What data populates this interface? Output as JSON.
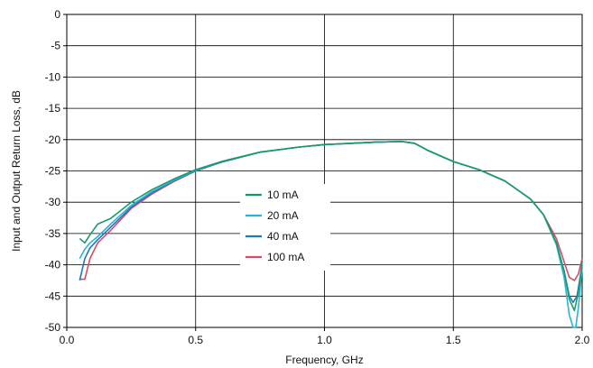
{
  "chart_data": {
    "type": "line",
    "xlabel": "Frequency, GHz",
    "ylabel": "Input and Output Return Loss, dB",
    "xlim": [
      0,
      2
    ],
    "ylim": [
      -50,
      0
    ],
    "x_ticks": [
      "0.0",
      "0.5",
      "1.0",
      "1.5",
      "2.0"
    ],
    "y_ticks": [
      "0",
      "-5",
      "-10",
      "-15",
      "-20",
      "-25",
      "-30",
      "-35",
      "-40",
      "-45",
      "-50"
    ],
    "grid": true,
    "legend_position": "center-left",
    "series": [
      {
        "name": "10 mA",
        "color": "#1a9a6a",
        "points": [
          [
            0.05,
            -35.8
          ],
          [
            0.07,
            -36.5
          ],
          [
            0.09,
            -35.2
          ],
          [
            0.12,
            -33.5
          ],
          [
            0.17,
            -32.6
          ],
          [
            0.25,
            -30.0
          ],
          [
            0.33,
            -28.0
          ],
          [
            0.42,
            -26.2
          ],
          [
            0.5,
            -24.8
          ],
          [
            0.6,
            -23.5
          ],
          [
            0.75,
            -22.0
          ],
          [
            0.9,
            -21.2
          ],
          [
            1.0,
            -20.8
          ],
          [
            1.1,
            -20.6
          ],
          [
            1.2,
            -20.4
          ],
          [
            1.3,
            -20.3
          ],
          [
            1.35,
            -20.6
          ],
          [
            1.4,
            -21.7
          ],
          [
            1.5,
            -23.5
          ],
          [
            1.6,
            -24.8
          ],
          [
            1.7,
            -26.6
          ],
          [
            1.8,
            -29.5
          ],
          [
            1.85,
            -32.0
          ],
          [
            1.9,
            -36.5
          ],
          [
            1.93,
            -41.0
          ],
          [
            1.95,
            -45.5
          ],
          [
            1.97,
            -47.3
          ],
          [
            1.985,
            -44.5
          ],
          [
            2.0,
            -39.5
          ]
        ]
      },
      {
        "name": "20 mA",
        "color": "#2ab3d6",
        "points": [
          [
            0.05,
            -39.0
          ],
          [
            0.07,
            -37.5
          ],
          [
            0.09,
            -36.5
          ],
          [
            0.12,
            -35.5
          ],
          [
            0.17,
            -33.5
          ],
          [
            0.25,
            -30.5
          ],
          [
            0.33,
            -28.3
          ],
          [
            0.42,
            -26.4
          ],
          [
            0.5,
            -24.9
          ],
          [
            0.6,
            -23.5
          ],
          [
            0.75,
            -22.0
          ],
          [
            0.9,
            -21.2
          ],
          [
            1.0,
            -20.8
          ],
          [
            1.1,
            -20.6
          ],
          [
            1.2,
            -20.4
          ],
          [
            1.3,
            -20.3
          ],
          [
            1.35,
            -20.6
          ],
          [
            1.4,
            -21.7
          ],
          [
            1.5,
            -23.5
          ],
          [
            1.6,
            -24.8
          ],
          [
            1.7,
            -26.6
          ],
          [
            1.8,
            -29.5
          ],
          [
            1.85,
            -32.0
          ],
          [
            1.9,
            -36.8
          ],
          [
            1.93,
            -42.0
          ],
          [
            1.95,
            -48.0
          ],
          [
            1.965,
            -50.0
          ],
          [
            1.975,
            -50.0
          ],
          [
            1.985,
            -47.0
          ],
          [
            2.0,
            -40.5
          ]
        ]
      },
      {
        "name": "40 mA",
        "color": "#1f78b8",
        "points": [
          [
            0.05,
            -42.5
          ],
          [
            0.07,
            -39.0
          ],
          [
            0.09,
            -37.3
          ],
          [
            0.12,
            -36.0
          ],
          [
            0.17,
            -34.0
          ],
          [
            0.25,
            -30.8
          ],
          [
            0.33,
            -28.5
          ],
          [
            0.42,
            -26.5
          ],
          [
            0.5,
            -25.0
          ],
          [
            0.6,
            -23.6
          ],
          [
            0.75,
            -22.0
          ],
          [
            0.9,
            -21.2
          ],
          [
            1.0,
            -20.8
          ],
          [
            1.1,
            -20.6
          ],
          [
            1.2,
            -20.4
          ],
          [
            1.3,
            -20.3
          ],
          [
            1.35,
            -20.6
          ],
          [
            1.4,
            -21.7
          ],
          [
            1.5,
            -23.5
          ],
          [
            1.6,
            -24.8
          ],
          [
            1.7,
            -26.6
          ],
          [
            1.8,
            -29.5
          ],
          [
            1.85,
            -32.0
          ],
          [
            1.9,
            -36.5
          ],
          [
            1.93,
            -41.0
          ],
          [
            1.95,
            -45.0
          ],
          [
            1.965,
            -46.0
          ],
          [
            1.98,
            -45.0
          ],
          [
            2.0,
            -40.0
          ]
        ]
      },
      {
        "name": "100 mA",
        "color": "#d94a6a",
        "points": [
          [
            0.05,
            -42.3
          ],
          [
            0.07,
            -42.3
          ],
          [
            0.09,
            -39.0
          ],
          [
            0.12,
            -36.5
          ],
          [
            0.17,
            -34.5
          ],
          [
            0.25,
            -31.0
          ],
          [
            0.33,
            -28.7
          ],
          [
            0.42,
            -26.6
          ],
          [
            0.5,
            -25.0
          ],
          [
            0.6,
            -23.6
          ],
          [
            0.75,
            -22.0
          ],
          [
            0.9,
            -21.2
          ],
          [
            1.0,
            -20.8
          ],
          [
            1.1,
            -20.6
          ],
          [
            1.2,
            -20.4
          ],
          [
            1.3,
            -20.3
          ],
          [
            1.35,
            -20.6
          ],
          [
            1.4,
            -21.7
          ],
          [
            1.5,
            -23.5
          ],
          [
            1.6,
            -24.8
          ],
          [
            1.7,
            -26.6
          ],
          [
            1.8,
            -29.5
          ],
          [
            1.85,
            -32.0
          ],
          [
            1.9,
            -35.8
          ],
          [
            1.93,
            -39.5
          ],
          [
            1.95,
            -42.0
          ],
          [
            1.97,
            -42.5
          ],
          [
            1.985,
            -41.5
          ],
          [
            2.0,
            -39.0
          ]
        ]
      }
    ]
  }
}
